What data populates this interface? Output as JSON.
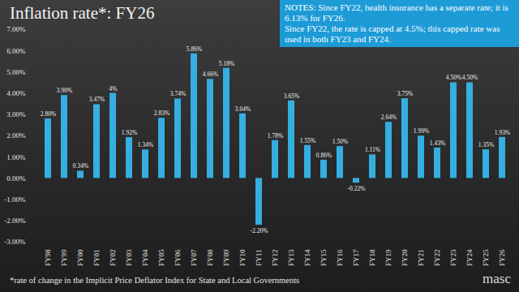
{
  "chart_data": {
    "type": "bar",
    "title": "Inflation rate*: FY26",
    "notes": [
      "NOTES: Since FY22, health insurance has a separate rate; it is 6.13% for FY26.",
      "Since FY22, the rate is capped at 4.5%; this capped rate was used in both FY23 and FY24."
    ],
    "footnote": "*rate of change in the Implicit Price Deflator Index for State and Local Governments",
    "logo": "masc",
    "categories": [
      "FY98",
      "FY99",
      "FY00",
      "FY01",
      "FY02",
      "FY03",
      "FY04",
      "FY05",
      "FY06",
      "FY07",
      "FY08",
      "FY09",
      "FY10",
      "FY11",
      "FY12",
      "FY13",
      "FY14",
      "FY15",
      "FY16",
      "FY17",
      "FY18",
      "FY19",
      "FY20",
      "FY21",
      "FY22",
      "FY23",
      "FY24",
      "FY25",
      "FY26"
    ],
    "values": [
      2.8,
      3.9,
      0.34,
      3.47,
      4,
      1.92,
      1.34,
      2.83,
      3.74,
      5.86,
      4.66,
      5.18,
      3.04,
      -2.2,
      1.78,
      3.65,
      1.55,
      0.86,
      1.5,
      -0.22,
      1.11,
      2.64,
      3.75,
      1.99,
      1.43,
      4.5,
      4.5,
      1.35,
      1.93
    ],
    "value_labels": [
      "2.80%",
      "3.90%",
      "0.34%",
      "3.47%",
      "4%",
      "1.92%",
      "1.34%",
      "2.83%",
      "3.74%",
      "5.86%",
      "4.66%",
      "5.18%",
      "3.04%",
      "-2.20%",
      "1.78%",
      "3.65%",
      "1.55%",
      "0.86%",
      "1.50%",
      "-0.22%",
      "1.11%",
      "2.64%",
      "3.75%",
      "1.99%",
      "1.43%",
      "4.50%",
      "4.50%",
      "1.35%",
      "1.93%"
    ],
    "color": "#35aee2",
    "ylim": [
      -3,
      7
    ],
    "yticks": [
      {
        "value": -3,
        "label": "-3.00%"
      },
      {
        "value": -2,
        "label": "-2.00%"
      },
      {
        "value": -1,
        "label": "-1.00%"
      },
      {
        "value": 0,
        "label": "0.00%"
      },
      {
        "value": 1,
        "label": "1.00%"
      },
      {
        "value": 2,
        "label": "2.00%"
      },
      {
        "value": 3,
        "label": "3.00%"
      },
      {
        "value": 4,
        "label": "4.00%"
      },
      {
        "value": 5,
        "label": "5.00%"
      },
      {
        "value": 6,
        "label": "6.00%"
      },
      {
        "value": 7,
        "label": "7.00%"
      }
    ],
    "grid": false,
    "data_labels": true
  }
}
